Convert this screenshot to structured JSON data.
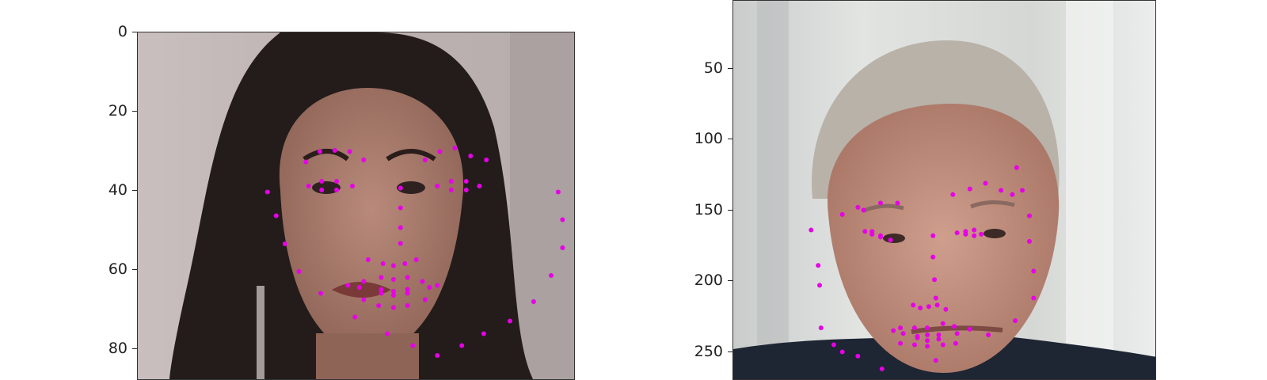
{
  "chart_data": [
    {
      "type": "scatter",
      "title": "",
      "xlabel": "",
      "ylabel": "",
      "y_ticks": [
        "0",
        "20",
        "40",
        "60",
        "80"
      ],
      "ylim": [
        0,
        85
      ],
      "grid": false,
      "marker_color": "#e600e6",
      "image_description": "woman with long dark hair",
      "series": [
        {
          "x": [
            14.8,
            15.8,
            16.8,
            18.4,
            20.9,
            24.8,
            28.5,
            31.4,
            34.2,
            37.0,
            39.5,
            42.5,
            45.2,
            47.2,
            48.5,
            48.5,
            48.0,
            19.2,
            20.8,
            22.5,
            24.2,
            25.8,
            32.8,
            34.5,
            36.2,
            38.0,
            39.8,
            30.0,
            30.0,
            30.0,
            30.0,
            26.3,
            28.0,
            29.2,
            30.5,
            31.8,
            19.5,
            21.0,
            22.7,
            24.5,
            22.7,
            21.0,
            34.2,
            35.8,
            37.5,
            39.0,
            37.5,
            35.8,
            24.0,
            25.8,
            27.8,
            29.2,
            30.8,
            32.5,
            34.2,
            32.8,
            30.8,
            29.2,
            27.5,
            25.8,
            25.3,
            27.8,
            29.2,
            30.8,
            33.3,
            30.8,
            29.2,
            27.8
          ],
          "y": [
            40.3,
            46.3,
            53.4,
            60.4,
            65.9,
            71.9,
            76.1,
            79.1,
            81.6,
            79.1,
            76.1,
            72.9,
            68.0,
            61.4,
            54.4,
            47.3,
            40.3,
            32.7,
            30.1,
            29.8,
            30.1,
            32.2,
            32.2,
            30.1,
            29.2,
            31.2,
            32.2,
            39.3,
            44.3,
            49.3,
            53.3,
            57.4,
            58.4,
            58.9,
            58.4,
            57.4,
            38.8,
            37.6,
            37.6,
            38.8,
            39.8,
            39.8,
            38.8,
            37.6,
            37.6,
            38.8,
            39.8,
            39.8,
            63.9,
            62.9,
            61.9,
            62.4,
            61.9,
            62.9,
            63.9,
            67.5,
            69.0,
            69.5,
            69.0,
            67.5,
            64.4,
            64.9,
            65.4,
            64.9,
            64.4,
            65.9,
            66.4,
            65.9
          ]
        }
      ]
    },
    {
      "type": "scatter",
      "title": "",
      "xlabel": "",
      "ylabel": "",
      "y_ticks": [
        "0",
        "50",
        "100",
        "150",
        "200",
        "250"
      ],
      "ylim": [
        0,
        265
      ],
      "grid": false,
      "marker_color": "#e600e6",
      "image_description": "older man with grey hair in a dark suit",
      "series": [
        {
          "x": [
            70,
            75,
            76,
            77,
            86,
            92,
            103,
            120,
            158,
            195,
            214,
            227,
            227,
            224,
            224,
            219,
            215,
            92,
            103,
            107,
            119,
            131,
            170,
            182,
            193,
            204,
            212,
            156,
            156,
            157,
            158,
            142,
            147,
            153,
            159,
            165,
            108,
            113,
            119,
            126,
            119,
            113,
            173,
            179,
            185,
            190,
            185,
            179,
            128,
            133,
            143,
            152,
            163,
            171,
            182,
            172,
            163,
            152,
            143,
            133,
            135,
            145,
            152,
            160,
            173,
            160,
            152,
            145
          ],
          "y": [
            164,
            189,
            203,
            233,
            245,
            250,
            253,
            262,
            256,
            238,
            228,
            212,
            193,
            172,
            154,
            136,
            120,
            153,
            148,
            150,
            145,
            145,
            139,
            135,
            131,
            136,
            139,
            168,
            183,
            199,
            212,
            217,
            219,
            218,
            217,
            220,
            165,
            165,
            169,
            171,
            168,
            167,
            166,
            165,
            164,
            167,
            168,
            167,
            235,
            233,
            233,
            233,
            230,
            232,
            234,
            244,
            245,
            246,
            245,
            244,
            237,
            239,
            238,
            238,
            237,
            241,
            242,
            240
          ]
        }
      ]
    }
  ]
}
